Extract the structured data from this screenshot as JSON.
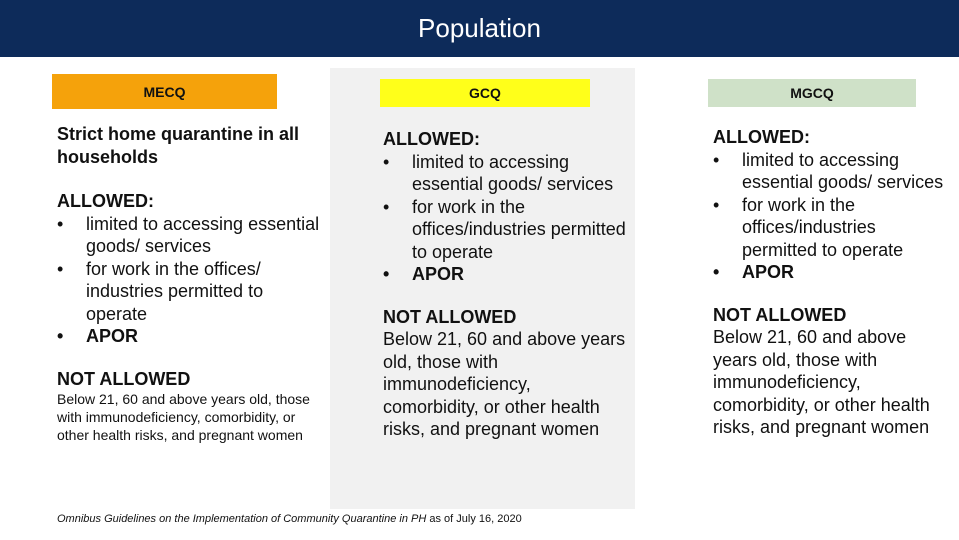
{
  "title": "Population",
  "columns": [
    {
      "tag": "MECQ",
      "tag_color": "#f5a20b",
      "intro": "Strict home quarantine in all households",
      "allowed_heading": "ALLOWED:",
      "allowed_items": [
        "limited to accessing essential goods/ services",
        "for work in the offices/ industries permitted to operate",
        "APOR"
      ],
      "not_allowed_heading": "NOT ALLOWED",
      "not_allowed_text": "Below 21, 60 and above years old, those with immunodeficiency, comorbidity, or other health risks, and pregnant women"
    },
    {
      "tag": "GCQ",
      "tag_color": "#ffff1a",
      "allowed_heading": "ALLOWED:",
      "allowed_items": [
        "limited to accessing essential goods/ services",
        "for work in the offices/industries permitted to operate",
        "APOR"
      ],
      "not_allowed_heading": "NOT ALLOWED",
      "not_allowed_text": "Below 21, 60 and above years old, those with immunodeficiency, comorbidity, or other health risks, and pregnant women"
    },
    {
      "tag": "MGCQ",
      "tag_color": "#cfe1c8",
      "allowed_heading": "ALLOWED:",
      "allowed_items": [
        "limited to accessing essential goods/ services",
        "for work in the offices/industries permitted to operate",
        "APOR"
      ],
      "not_allowed_heading": "NOT ALLOWED",
      "not_allowed_text": "Below 21, 60 and above years old, those with immunodeficiency, comorbidity, or other health risks, and pregnant women"
    }
  ],
  "bullet_glyph": "•",
  "footer": {
    "italic": "Omnibus Guidelines on the Implementation of Community Quarantine in PH",
    "date": " as of July 16, 2020"
  }
}
